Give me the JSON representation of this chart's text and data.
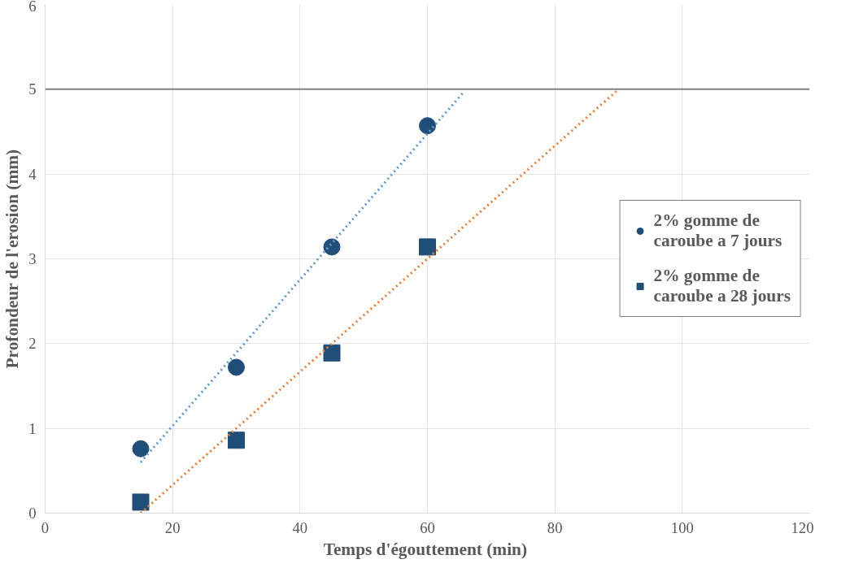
{
  "chart_data": {
    "type": "scatter",
    "xlabel": "Temps d'égouttement  (min)",
    "ylabel": "Profondeur de l'erosion (mm)",
    "xlim": [
      0,
      120
    ],
    "xticks": [
      0,
      20,
      40,
      60,
      80,
      100,
      120
    ],
    "ylim": [
      0,
      6
    ],
    "yticks": [
      0,
      1,
      2,
      3,
      4,
      5,
      6
    ],
    "grid": true,
    "legend": "right",
    "series": [
      {
        "name": "2% gomme de caroube a 7 jours",
        "color": "#1f4e79",
        "marker": "circle",
        "x": [
          15,
          30,
          45,
          60
        ],
        "values": [
          0.76,
          1.72,
          3.14,
          4.57
        ]
      },
      {
        "name": "2% gomme de caroube a 28 jours",
        "color": "#1f4e79",
        "marker": "square",
        "x": [
          15,
          30,
          45,
          60
        ],
        "values": [
          0.13,
          0.86,
          1.89,
          3.14
        ]
      },
      {
        "type": "line",
        "color": "#5b9bd5",
        "line_style": "dotted",
        "x": [
          15,
          65.5
        ],
        "values": [
          0.6,
          4.95
        ]
      },
      {
        "type": "line",
        "color": "#ed7d31",
        "line_style": "dotted",
        "x": [
          15,
          90
        ],
        "values": [
          0,
          5.0
        ]
      }
    ],
    "ref_lines": [
      {
        "axis": "y",
        "value": 5,
        "color": "#7f7f7f",
        "line_style": "solid"
      }
    ]
  }
}
